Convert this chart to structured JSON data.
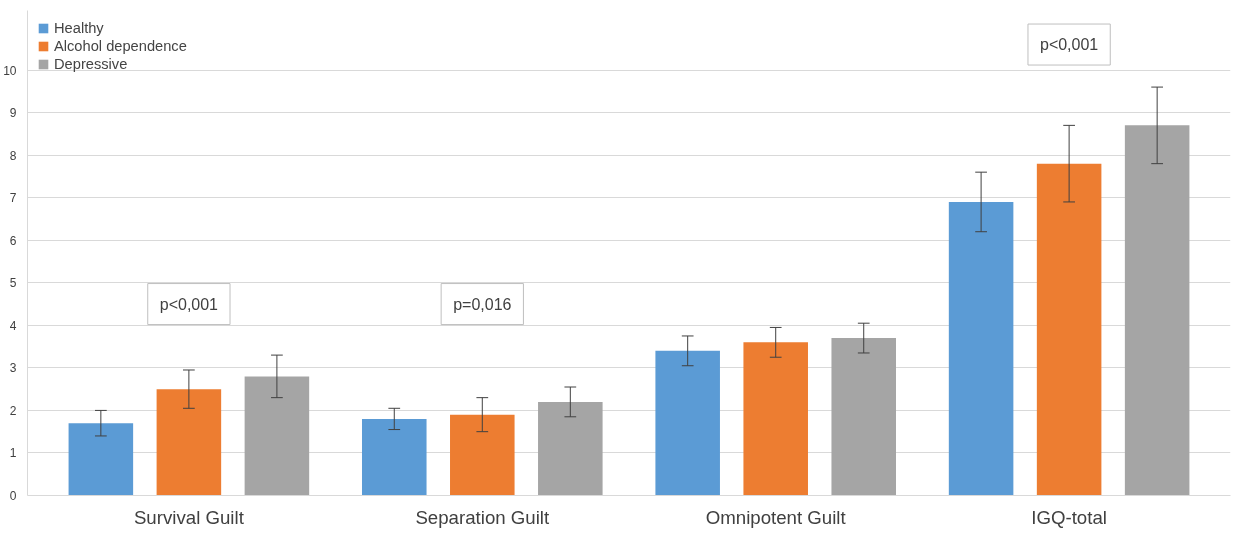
{
  "chart_data": {
    "type": "bar",
    "categories": [
      "Survival Guilt",
      "Separation Guilt",
      "Omnipotent Guilt",
      "IGQ-total"
    ],
    "series": [
      {
        "name": "Healthy",
        "color": "#5b9bd5",
        "values": [
          1.7,
          1.8,
          3.4,
          6.9
        ],
        "errors": [
          0.3,
          0.25,
          0.35,
          0.7
        ]
      },
      {
        "name": "Alcohol dependence",
        "color": "#ed7d31",
        "values": [
          2.5,
          1.9,
          3.6,
          7.8
        ],
        "errors": [
          0.45,
          0.4,
          0.35,
          0.9
        ]
      },
      {
        "name": "Depressive",
        "color": "#a5a5a5",
        "values": [
          2.8,
          2.2,
          3.7,
          8.7
        ],
        "errors": [
          0.5,
          0.35,
          0.35,
          0.9
        ]
      }
    ],
    "ylim": [
      0,
      11.4
    ],
    "yticks": [
      0,
      1,
      2,
      3,
      4,
      5,
      6,
      7,
      8,
      9,
      10
    ],
    "grid": "y",
    "legend": "top left",
    "annotations": [
      "p<0,001",
      "p=0,016",
      "p<0,001"
    ]
  }
}
